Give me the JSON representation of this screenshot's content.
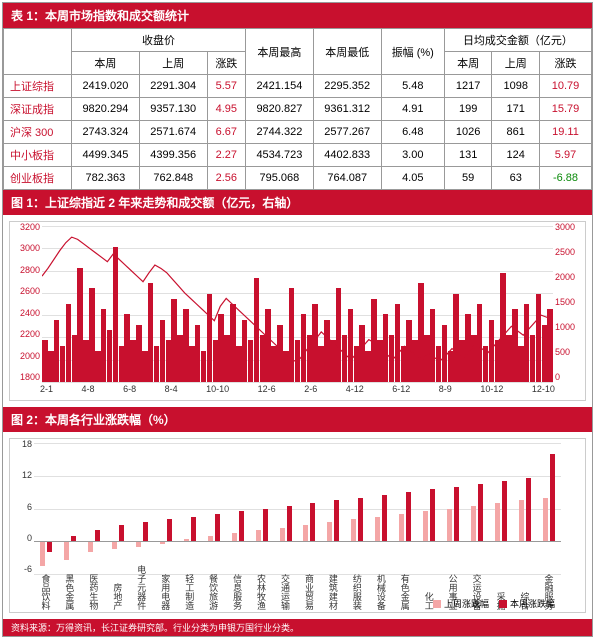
{
  "table1": {
    "title": "表 1：本周市场指数和成交额统计",
    "header_groups": {
      "close": "收盘价",
      "high": "本周最高",
      "low": "本周最低",
      "amp": "振幅\n(%)",
      "vol": "日均成交金额（亿元）"
    },
    "sub_headers": {
      "this_week": "本周",
      "last_week": "上周",
      "change": "涨跌"
    },
    "rows": [
      {
        "name": "上证综指",
        "close_tw": "2419.020",
        "close_lw": "2291.304",
        "close_chg": "5.57",
        "high": "2421.154",
        "low": "2295.352",
        "amp": "5.48",
        "vol_tw": "1217",
        "vol_lw": "1098",
        "vol_chg": "10.79",
        "chg_class": "red",
        "vol_class": "red"
      },
      {
        "name": "深证成指",
        "close_tw": "9820.294",
        "close_lw": "9357.130",
        "close_chg": "4.95",
        "high": "9820.827",
        "low": "9361.312",
        "amp": "4.91",
        "vol_tw": "199",
        "vol_lw": "171",
        "vol_chg": "15.79",
        "chg_class": "red",
        "vol_class": "red"
      },
      {
        "name": "沪深 300",
        "close_tw": "2743.324",
        "close_lw": "2571.674",
        "close_chg": "6.67",
        "high": "2744.322",
        "low": "2577.267",
        "amp": "6.48",
        "vol_tw": "1026",
        "vol_lw": "861",
        "vol_chg": "19.11",
        "chg_class": "red",
        "vol_class": "red"
      },
      {
        "name": "中小板指",
        "close_tw": "4499.345",
        "close_lw": "4399.356",
        "close_chg": "2.27",
        "high": "4534.723",
        "low": "4402.833",
        "amp": "3.00",
        "vol_tw": "131",
        "vol_lw": "124",
        "vol_chg": "5.97",
        "chg_class": "red",
        "vol_class": "red"
      },
      {
        "name": "创业板指",
        "close_tw": "782.363",
        "close_lw": "762.848",
        "close_chg": "2.56",
        "high": "795.068",
        "low": "764.087",
        "amp": "4.05",
        "vol_tw": "59",
        "vol_lw": "63",
        "vol_chg": "-6.88",
        "chg_class": "red",
        "vol_class": "green"
      }
    ]
  },
  "chart1": {
    "title": "图 1：上证综指近 2 年来走势和成交额（亿元，右轴）",
    "yleft_ticks": [
      "3200",
      "3000",
      "2800",
      "2600",
      "2400",
      "2200",
      "2000",
      "1800"
    ],
    "yright_ticks": [
      "3000",
      "2500",
      "2000",
      "1500",
      "1000",
      "500",
      "0"
    ],
    "x_ticks": [
      "2-1",
      "4-8",
      "6-8",
      "8-4",
      "10-10",
      "12-6",
      "2-6",
      "4-12",
      "6-12",
      "8-9",
      "10-12",
      "12-10"
    ],
    "line_color": "#c8102e",
    "bar_color": "#c8102e",
    "grid_color": "#e0e0e0",
    "bg_color": "#ffffff",
    "line_values": [
      2750,
      2820,
      2900,
      2980,
      3050,
      3100,
      3080,
      3040,
      3000,
      2960,
      2920,
      2880,
      2950,
      2900,
      2850,
      2800,
      2750,
      2700,
      2780,
      2850,
      2820,
      2780,
      2720,
      2660,
      2600,
      2550,
      2500,
      2450,
      2400,
      2350,
      2480,
      2550,
      2500,
      2450,
      2400,
      2350,
      2300,
      2250,
      2200,
      2150,
      2100,
      2050,
      2000,
      1980,
      2050,
      2120,
      2180,
      2250,
      2200,
      2150,
      2100,
      2050,
      2000,
      2060,
      2120,
      2180,
      2150,
      2100,
      2050,
      2000,
      2060,
      2120,
      2080,
      2040,
      2000,
      2060,
      2020,
      1990,
      2040,
      2100,
      2060,
      2020,
      2080,
      2140,
      2100,
      2060,
      2120,
      2180,
      2240,
      2300,
      2260,
      2220,
      2280,
      2340,
      2400,
      2380,
      2420
    ],
    "volume_values": [
      800,
      600,
      1200,
      700,
      1500,
      900,
      2200,
      800,
      1800,
      600,
      1400,
      1000,
      2600,
      700,
      1300,
      800,
      1100,
      600,
      1900,
      700,
      1200,
      800,
      1600,
      900,
      1400,
      700,
      1100,
      600,
      1700,
      800,
      1300,
      900,
      1500,
      700,
      1200,
      800,
      2000,
      900,
      1400,
      700,
      1100,
      600,
      1800,
      800,
      1300,
      900,
      1500,
      700,
      1200,
      800,
      1800,
      900,
      1400,
      700,
      1100,
      600,
      1600,
      800,
      1300,
      900,
      1500,
      700,
      1200,
      800,
      1900,
      900,
      1400,
      700,
      1100,
      600,
      1700,
      800,
      1300,
      900,
      1500,
      700,
      1200,
      800,
      2100,
      900,
      1400,
      700,
      1500,
      900,
      1700,
      1100,
      1400
    ]
  },
  "chart2": {
    "title": "图 2：本周各行业涨跌幅（%）",
    "y_ticks": [
      "18",
      "12",
      "6",
      "0",
      "-6"
    ],
    "y_min": -6,
    "y_max": 18,
    "last_color": "#f4a6a6",
    "this_color": "#c8102e",
    "legend_last": "上周涨跌幅",
    "legend_this": "本周涨跌幅",
    "sectors": [
      {
        "name": "食品饮料",
        "last": -4.5,
        "this": -2
      },
      {
        "name": "黑色金属",
        "last": -3.5,
        "this": 1
      },
      {
        "name": "医药生物",
        "last": -2,
        "this": 2
      },
      {
        "name": "房地产",
        "last": -1.5,
        "this": 3
      },
      {
        "name": "电子元器件",
        "last": -1,
        "this": 3.5
      },
      {
        "name": "家用电器",
        "last": -0.5,
        "this": 4
      },
      {
        "name": "轻工制造",
        "last": 0.5,
        "this": 4.5
      },
      {
        "name": "餐饮旅游",
        "last": 1,
        "this": 5
      },
      {
        "name": "信息服务",
        "last": 1.5,
        "this": 5.5
      },
      {
        "name": "农林牧渔",
        "last": 2,
        "this": 6
      },
      {
        "name": "交通运输",
        "last": 2.5,
        "this": 6.5
      },
      {
        "name": "商业贸易",
        "last": 3,
        "this": 7
      },
      {
        "name": "建筑建材",
        "last": 3.5,
        "this": 7.5
      },
      {
        "name": "纺织服装",
        "last": 4,
        "this": 8
      },
      {
        "name": "机械设备",
        "last": 4.5,
        "this": 8.5
      },
      {
        "name": "有色金属",
        "last": 5,
        "this": 9
      },
      {
        "name": "化工",
        "last": 5.5,
        "this": 9.5
      },
      {
        "name": "公用事业",
        "last": 6,
        "this": 10
      },
      {
        "name": "交运设备",
        "last": 6.5,
        "this": 10.5
      },
      {
        "name": "采掘",
        "last": 7,
        "this": 11
      },
      {
        "name": "综合",
        "last": 7.5,
        "this": 11.5
      },
      {
        "name": "金融服务",
        "last": 8,
        "this": 16
      }
    ]
  },
  "footnote": "资料来源：万得资讯，长江证券研究部。行业分类为申银万国行业分类。"
}
